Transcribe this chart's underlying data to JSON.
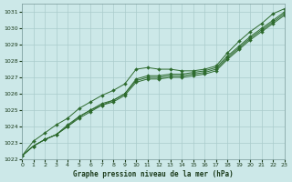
{
  "xlabel": "Graphe pression niveau de la mer (hPa)",
  "xlim": [
    0,
    23
  ],
  "ylim": [
    1022,
    1031.5
  ],
  "yticks": [
    1022,
    1023,
    1024,
    1025,
    1026,
    1027,
    1028,
    1029,
    1030,
    1031
  ],
  "xticks": [
    0,
    1,
    2,
    3,
    4,
    5,
    6,
    7,
    8,
    9,
    10,
    11,
    12,
    13,
    14,
    15,
    16,
    17,
    18,
    19,
    20,
    21,
    22,
    23
  ],
  "bg_color": "#cce8e8",
  "grid_color": "#aacccc",
  "line_color": "#2d6a2d",
  "series": [
    [
      1022.2,
      1023.1,
      1023.6,
      1024.1,
      1024.5,
      1025.1,
      1025.5,
      1025.9,
      1026.2,
      1026.6,
      1027.5,
      1027.6,
      1027.5,
      1027.5,
      1027.4,
      1027.4,
      1027.5,
      1027.7,
      1028.5,
      1029.2,
      1029.8,
      1030.3,
      1030.9,
      1031.2
    ],
    [
      1022.2,
      1022.8,
      1023.2,
      1023.5,
      1024.1,
      1024.6,
      1025.0,
      1025.4,
      1025.6,
      1026.0,
      1026.9,
      1027.1,
      1027.1,
      1027.2,
      1027.2,
      1027.3,
      1027.4,
      1027.6,
      1028.3,
      1028.9,
      1029.5,
      1030.0,
      1030.5,
      1031.0
    ],
    [
      1022.2,
      1022.8,
      1023.2,
      1023.5,
      1024.0,
      1024.6,
      1025.0,
      1025.3,
      1025.6,
      1026.0,
      1026.8,
      1027.0,
      1027.0,
      1027.1,
      1027.1,
      1027.2,
      1027.3,
      1027.5,
      1028.2,
      1028.8,
      1029.4,
      1029.9,
      1030.4,
      1030.9
    ],
    [
      1022.2,
      1022.8,
      1023.2,
      1023.5,
      1024.0,
      1024.5,
      1024.9,
      1025.3,
      1025.5,
      1025.9,
      1026.7,
      1026.9,
      1026.9,
      1027.0,
      1027.0,
      1027.1,
      1027.2,
      1027.4,
      1028.1,
      1028.7,
      1029.3,
      1029.8,
      1030.3,
      1030.8
    ]
  ]
}
